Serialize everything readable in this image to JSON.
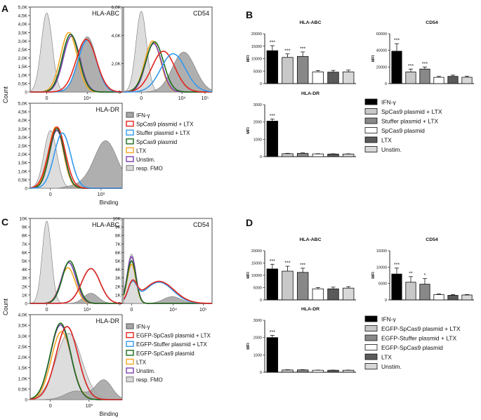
{
  "panels": {
    "A": {
      "letter": "A",
      "ylabel": "Count",
      "xlabel": "Binding",
      "hist": [
        {
          "title": "HLA-ABC",
          "yticks": [
            "0",
            "0,5K",
            "1,0K",
            "1,5K",
            "2,0K",
            "2,5K",
            "3,0K",
            "3,5K",
            "4,0K",
            "4,5K",
            "5,0K"
          ],
          "xticks": [
            "0",
            "10⁴"
          ],
          "ymax": 5000
        },
        {
          "title": "CD54",
          "yticks": [
            "0",
            "2,0K",
            "4,0K",
            "6,0K"
          ],
          "xticks": [
            "0",
            "10⁴",
            "10⁵"
          ],
          "ymax": 6000
        },
        {
          "title": "HLA-DR",
          "yticks": [
            "0",
            "0,5K",
            "1,0K",
            "1,5K",
            "2,0K",
            "2,5K",
            "3,0K",
            "3,5K",
            "4,0K",
            "4,5K",
            "5,0K"
          ],
          "xticks": [
            "0",
            "10³"
          ],
          "ymax": 5000
        }
      ],
      "legend": [
        "IFN-γ",
        "SpCas9 plasmid + LTX",
        "Stuffer plasmid + LTX",
        "SpCas9 plasmid",
        "LTX",
        "Unstim.",
        "resp. FMO"
      ]
    },
    "B": {
      "letter": "B",
      "ylabel": "MFI",
      "legend": [
        "IFN-γ",
        "SpCas9 plasmid + LTX",
        "Stuffer plasmid + LTX",
        "SpCas9 plasmid",
        "LTX",
        "Unstim."
      ]
    },
    "C": {
      "letter": "C",
      "ylabel": "Count",
      "xlabel": "Binding",
      "hist": [
        {
          "title": "HLA-ABC",
          "yticks": [
            "0",
            "1K",
            "2K",
            "3K",
            "4K",
            "5K",
            "6K",
            "7K",
            "8K",
            "9K",
            "10K"
          ],
          "xticks": [
            "0",
            "10⁴"
          ],
          "ymax": 10000
        },
        {
          "title": "CD54",
          "yticks": [
            "0",
            "1K",
            "2K",
            "3K",
            "4K",
            "5K",
            "6K",
            "7K",
            "8K",
            "9K",
            "10K"
          ],
          "xticks": [
            "0",
            "10⁴",
            "10⁵"
          ],
          "ymax": 10000
        },
        {
          "title": "HLA-DR",
          "yticks": [
            "0",
            "0,5K",
            "1,0K",
            "1,5K",
            "2,0K",
            "2,5K",
            "3,0K",
            "3,5K",
            "4,0K"
          ],
          "xticks": [
            "0",
            "10³"
          ],
          "ymax": 4000
        }
      ],
      "legend": [
        "IFN-γ",
        "EGFP-SpCas9 plasmid + LTX",
        "EGFP-Stuffer plasmid + LTX",
        "EGFP-SpCas9 plasmid",
        "LTX",
        "Unstim.",
        "resp. FMO"
      ]
    },
    "D": {
      "letter": "D",
      "ylabel": "MFI",
      "legend": [
        "IFN-γ",
        "EGFP-SpCas9 plasmid + LTX",
        "EGFP-Stuffer plasmid + LTX",
        "EGFP-SpCas9 plasmid",
        "LTX",
        "Unstim."
      ]
    }
  },
  "colors": {
    "ifn": "#a6a6a6",
    "fmo": "#d9d9d9",
    "red": "#e3241b",
    "blue": "#3399ee",
    "green": "#1a6b1a",
    "orange": "#f5a623",
    "purple": "#7a3fb0",
    "bar1": "#000000",
    "bar2": "#c8c8c8",
    "bar3": "#888888",
    "bar4": "#ffffff",
    "bar5": "#5a5a5a",
    "bar6": "#d8d8d8"
  },
  "chart_data": [
    {
      "type": "bar",
      "panel": "B",
      "title": "HLA-ABC",
      "ylabel": "MFI",
      "yticks": [
        "0",
        "5000",
        "10000",
        "15000",
        "20000"
      ],
      "ylim": [
        0,
        20000
      ],
      "values": [
        13200,
        10500,
        10900,
        4700,
        4600,
        4700
      ],
      "errors": [
        2000,
        1400,
        1800,
        500,
        700,
        700
      ],
      "sig": [
        "***",
        "***",
        "***",
        "",
        "",
        ""
      ]
    },
    {
      "type": "bar",
      "panel": "B",
      "title": "CD54",
      "ylabel": "MFI",
      "yticks": [
        "0",
        "20000",
        "40000",
        "60000"
      ],
      "ylim": [
        0,
        60000
      ],
      "values": [
        39000,
        14000,
        17500,
        7500,
        8700,
        7600
      ],
      "errors": [
        9000,
        3500,
        2500,
        1200,
        1500,
        1300
      ],
      "sig": [
        "***",
        "***",
        "***",
        "",
        "",
        ""
      ]
    },
    {
      "type": "bar",
      "panel": "B",
      "title": "HLA-DR",
      "ylabel": "MFI",
      "yticks": [
        "0",
        "1000",
        "2000",
        "3000"
      ],
      "ylim": [
        0,
        3000
      ],
      "values": [
        2050,
        170,
        190,
        155,
        150,
        150
      ],
      "errors": [
        120,
        20,
        25,
        15,
        15,
        15
      ],
      "sig": [
        "***",
        "",
        "",
        "",
        "",
        ""
      ]
    },
    {
      "type": "bar",
      "panel": "D",
      "title": "HLA-ABC",
      "ylabel": "MFI",
      "yticks": [
        "0",
        "5000",
        "10000",
        "15000",
        "20000"
      ],
      "ylim": [
        0,
        20000
      ],
      "values": [
        12600,
        11700,
        11200,
        4500,
        4500,
        4800
      ],
      "errors": [
        1900,
        2000,
        1700,
        500,
        700,
        600
      ],
      "sig": [
        "***",
        "***",
        "***",
        "",
        "",
        ""
      ]
    },
    {
      "type": "bar",
      "panel": "D",
      "title": "CD54",
      "ylabel": "MFI",
      "yticks": [
        "0",
        "5000",
        "10000",
        "15000"
      ],
      "ylim": [
        0,
        15000
      ],
      "values": [
        7900,
        5400,
        4800,
        1600,
        1400,
        1500
      ],
      "errors": [
        1800,
        1700,
        1700,
        200,
        200,
        150
      ],
      "sig": [
        "***",
        "**",
        "*",
        "",
        "",
        ""
      ]
    },
    {
      "type": "bar",
      "panel": "D",
      "title": "HLA-DR",
      "ylabel": "MFI",
      "yticks": [
        "0",
        "1000",
        "2000",
        "3000"
      ],
      "ylim": [
        0,
        3000
      ],
      "values": [
        2000,
        130,
        135,
        115,
        115,
        115
      ],
      "errors": [
        130,
        15,
        15,
        10,
        10,
        10
      ],
      "sig": [
        "***",
        "",
        "",
        "",
        "",
        ""
      ]
    }
  ]
}
